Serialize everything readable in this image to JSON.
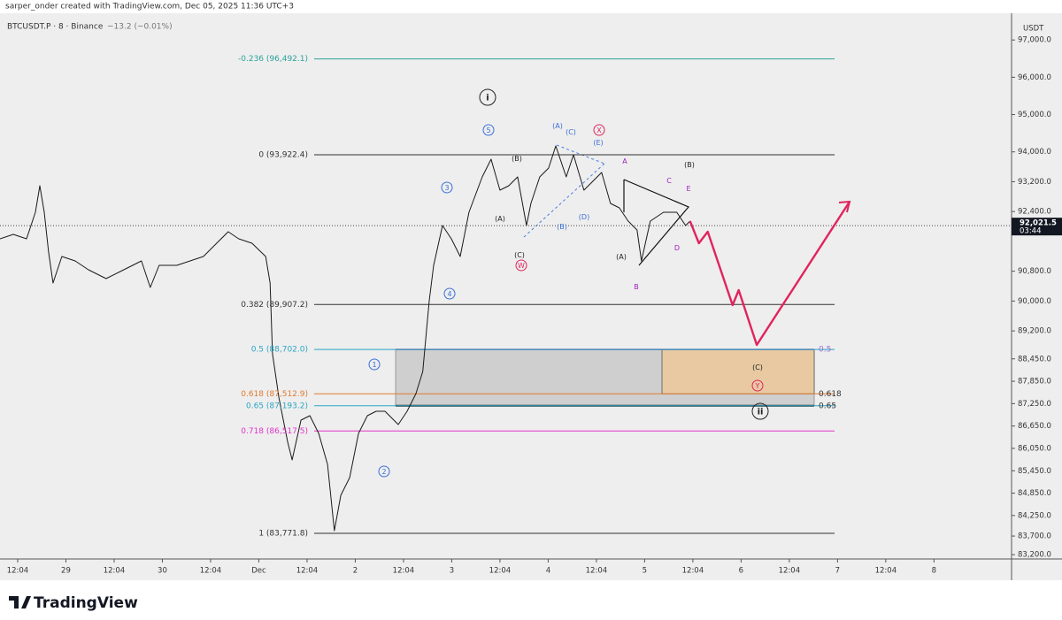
{
  "header": {
    "author": "sarper_onder created with TradingView.com, Dec 05, 2025 11:36 UTC+3"
  },
  "footer": {
    "brand": "TradingView"
  },
  "chart_data": {
    "type": "line",
    "symbol": "BTCUSDT.P · 8 · Binance",
    "change": "−13.2 (−0.01%)",
    "y_axis_label": "USDT",
    "xlim": [
      -4.4,
      247.3
    ],
    "xticks": [
      {
        "value": 0,
        "label": "12:04"
      },
      {
        "value": 12,
        "label": "29"
      },
      {
        "value": 24,
        "label": "12:04"
      },
      {
        "value": 36,
        "label": "30"
      },
      {
        "value": 48,
        "label": "12:04"
      },
      {
        "value": 60,
        "label": "Dec"
      },
      {
        "value": 72,
        "label": "12:04"
      },
      {
        "value": 84,
        "label": "2"
      },
      {
        "value": 96,
        "label": "12:04"
      },
      {
        "value": 108,
        "label": "3"
      },
      {
        "value": 120,
        "label": "12:04"
      },
      {
        "value": 132,
        "label": "4"
      },
      {
        "value": 144,
        "label": "12:04"
      },
      {
        "value": 156,
        "label": "5"
      },
      {
        "value": 168,
        "label": "12:04"
      },
      {
        "value": 180,
        "label": "6"
      },
      {
        "value": 192,
        "label": "12:04"
      },
      {
        "value": 204,
        "label": "7"
      },
      {
        "value": 216,
        "label": "12:04"
      },
      {
        "value": 228,
        "label": "8"
      }
    ],
    "ylim": [
      83085,
      97645
    ],
    "yticks": [
      {
        "value": 97000,
        "label": "97,000.0"
      },
      {
        "value": 96000,
        "label": "96,000.0"
      },
      {
        "value": 95000,
        "label": "95,000.0"
      },
      {
        "value": 94000,
        "label": "94,000.0"
      },
      {
        "value": 93200,
        "label": "93,200.0"
      },
      {
        "value": 92400,
        "label": "92,400.0"
      },
      {
        "value": 90800,
        "label": "90,800.0"
      },
      {
        "value": 90000,
        "label": "90,000.0"
      },
      {
        "value": 89200,
        "label": "89,200.0"
      },
      {
        "value": 88450,
        "label": "88,450.0"
      },
      {
        "value": 87850,
        "label": "87,850.0"
      },
      {
        "value": 87250,
        "label": "87,250.0"
      },
      {
        "value": 86650,
        "label": "86,650.0"
      },
      {
        "value": 86050,
        "label": "86,050.0"
      },
      {
        "value": 85450,
        "label": "85,450.0"
      },
      {
        "value": 84850,
        "label": "84,850.0"
      },
      {
        "value": 84250,
        "label": "84,250.0"
      },
      {
        "value": 83700,
        "label": "83,700.0"
      },
      {
        "value": 83200,
        "label": "83,200.0"
      }
    ],
    "series": [
      {
        "color": "#1a1a1a",
        "x": [
          -4.4,
          -1.1,
          2.2,
          4.4,
          5.5,
          6.6,
          7.7,
          8.8,
          11.0,
          14.3,
          17.6,
          22.0,
          26.4,
          30.8,
          33.0,
          35.2,
          39.6,
          42.9,
          46.2,
          49.5,
          52.4,
          55.0,
          58.3,
          61.7,
          62.8,
          63.4,
          65.0,
          67.2,
          68.3,
          70.5,
          72.7,
          74.9,
          77.1,
          78.8,
          80.4,
          82.6,
          84.8,
          87.0,
          89.2,
          91.4,
          94.7,
          96.9,
          99.1,
          100.8,
          102.4,
          103.5,
          105.7,
          107.9,
          110.1,
          112.3,
          115.6,
          117.8,
          120.0,
          122.2,
          124.4,
          126.6,
          127.7,
          129.9,
          132.1,
          133.9,
          136.5,
          138.3,
          140.9,
          145.3,
          147.5,
          149.7,
          151.9,
          154.1,
          155.2,
          157.4,
          160.7,
          164.0,
          166.2,
          167.3
        ],
        "values": [
          91670,
          91788,
          91670,
          92381,
          93092,
          92381,
          91314,
          90484,
          91195,
          91077,
          90839,
          90602,
          90839,
          91077,
          90365,
          90958,
          90958,
          91077,
          91195,
          91551,
          91859,
          91670,
          91551,
          91195,
          90484,
          88587,
          87401,
          86215,
          85741,
          86808,
          86927,
          86452,
          85622,
          83844,
          84792,
          85267,
          86452,
          86927,
          87045,
          87045,
          86690,
          87045,
          87520,
          88113,
          90010,
          90958,
          92025,
          91670,
          91195,
          92381,
          93330,
          93804,
          92974,
          93092,
          93330,
          92025,
          92618,
          93330,
          93567,
          94160,
          93330,
          93922,
          92974,
          93448,
          92618,
          92499,
          92144,
          91907,
          91077,
          92144,
          92381,
          92381,
          92025,
          92144
        ]
      },
      {
        "color": "#e0245e",
        "x": [
          167.3,
          169.5,
          171.7,
          177.9,
          179.4,
          183.9,
          207.0
        ],
        "values": [
          92144,
          91551,
          91859,
          89891,
          90294,
          88824,
          92665
        ]
      }
    ],
    "fib_levels": [
      {
        "label": "-0.236 (96,492.1)",
        "value": 96492.1,
        "color": "#2aa39a"
      },
      {
        "label": "0 (93,922.4)",
        "value": 93922.4,
        "color": "#333333"
      },
      {
        "label": "0.382 (89,907.2)",
        "value": 89907.2,
        "color": "#333333"
      },
      {
        "label": "0.5 (88,702.0)",
        "value": 88702.0,
        "color": "#2aa6c4"
      },
      {
        "label": "0.618 (87,512.9)",
        "value": 87512.9,
        "color": "#e07a2e"
      },
      {
        "label": "0.65 (87,193.2)",
        "value": 87193.2,
        "color": "#2aa6c4"
      },
      {
        "label": "0.718 (86,517.5)",
        "value": 86517.5,
        "color": "#e034c8"
      },
      {
        "label": "1 (83,771.8)",
        "value": 83771.8,
        "color": "#333333"
      }
    ],
    "zone_labels": [
      "0.5",
      "0.618",
      "0.65"
    ],
    "last_price": {
      "value": 92021.5,
      "label": "92,021.5"
    },
    "countdown": "03:44",
    "annotations": [
      "i",
      "5",
      "3",
      "4",
      "1",
      "2",
      "(A)",
      "(C)",
      "X",
      "(E)",
      "(B)",
      "A",
      "(B)",
      "C",
      "E",
      "(A)",
      "(D)",
      "(B)",
      "D",
      "(C)",
      "W",
      "(A)",
      "B",
      "(C)",
      "Y",
      "ii"
    ]
  }
}
